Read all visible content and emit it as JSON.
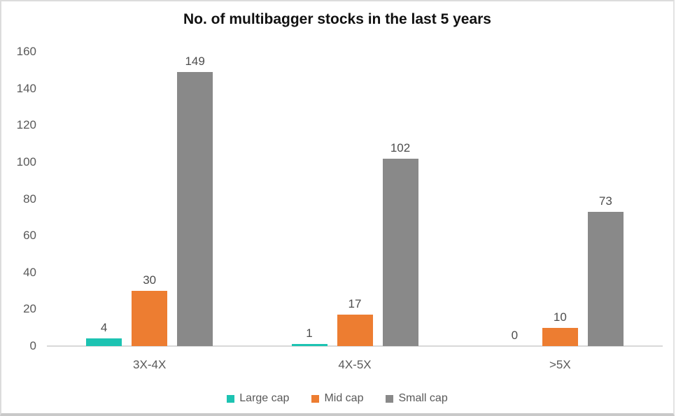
{
  "chart_data": {
    "type": "bar",
    "title": "No. of multibagger stocks in the last 5 years",
    "categories": [
      "3X-4X",
      "4X-5X",
      ">5X"
    ],
    "series": [
      {
        "name": "Large cap",
        "color": "#1DC3B2",
        "values": [
          4,
          1,
          0
        ]
      },
      {
        "name": "Mid cap",
        "color": "#ED7D31",
        "values": [
          30,
          17,
          10
        ]
      },
      {
        "name": "Small cap",
        "color": "#898989",
        "values": [
          149,
          102,
          73
        ]
      }
    ],
    "xlabel": "",
    "ylabel": "",
    "ylim": [
      0,
      160
    ],
    "yticks": [
      0,
      20,
      40,
      60,
      80,
      100,
      120,
      140,
      160
    ],
    "grid": false,
    "legend_position": "bottom",
    "axis_text_color": "#595959",
    "axis_line_color": "#d9d9d9"
  }
}
